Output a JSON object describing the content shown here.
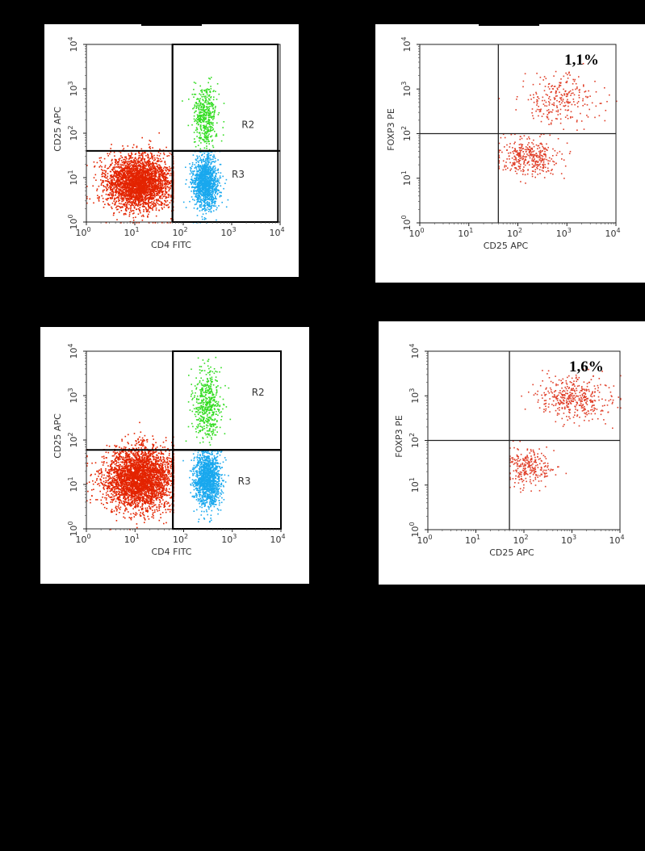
{
  "figure": {
    "background": "#000000",
    "colors": {
      "high": "#e32400",
      "cd4pos_cd25hi": "#33dd22",
      "cd4pos_cd25lo": "#19a8ee",
      "foxp3": "#e0402a"
    }
  },
  "chart_data": [
    {
      "id": "p1",
      "type": "scatter",
      "scale": "log",
      "xlim": [
        1,
        10000
      ],
      "ylim": [
        1,
        10000
      ],
      "xlabel": "CD4 FITC",
      "ylabel": "CD25 APC",
      "gates": [
        {
          "name": "R2",
          "x": [
            60,
            9000
          ],
          "y": [
            40,
            10000
          ]
        },
        {
          "name": "R3",
          "x": [
            60,
            9000
          ],
          "y": [
            1,
            40
          ]
        }
      ],
      "gate_labels": [
        {
          "text": "R2",
          "x": 1600,
          "y": 130
        },
        {
          "text": "R3",
          "x": 1000,
          "y": 10
        }
      ],
      "populations": [
        {
          "name": "CD4 negative",
          "color": "#e32400",
          "count": 3200,
          "cx": 12,
          "cy": 8,
          "sx": 0.35,
          "sy": 0.3,
          "xmin": 1,
          "xmax": 60,
          "ymin": 1,
          "ymax": 700
        },
        {
          "name": "CD4+ CD25 high",
          "color": "#33dd22",
          "count": 450,
          "cx": 280,
          "cy": 250,
          "sx": 0.13,
          "sy": 0.35,
          "xmin": 60,
          "xmax": 900,
          "ymin": 40,
          "ymax": 7000
        },
        {
          "name": "CD4+ CD25 low",
          "color": "#19a8ee",
          "count": 1300,
          "cx": 280,
          "cy": 8,
          "sx": 0.13,
          "sy": 0.3,
          "xmin": 60,
          "xmax": 900,
          "ymin": 1,
          "ymax": 40
        }
      ]
    },
    {
      "id": "p2",
      "type": "scatter",
      "scale": "log",
      "xlim": [
        1,
        10000
      ],
      "ylim": [
        1,
        10000
      ],
      "xlabel": "CD25 APC",
      "ylabel": "FOXP3 PE",
      "quadrant": {
        "x": 40,
        "y": 100
      },
      "annotation": {
        "text": "1,1%",
        "x": 2000,
        "y": 3500
      },
      "populations": [
        {
          "name": "FOXP3 low",
          "color": "#e0402a",
          "count": 380,
          "cx": 170,
          "cy": 30,
          "sx": 0.3,
          "sy": 0.2,
          "xmin": 40,
          "xmax": 10000,
          "ymin": 1,
          "ymax": 100
        },
        {
          "name": "FOXP3 high",
          "color": "#e0402a",
          "count": 260,
          "cx": 700,
          "cy": 600,
          "sx": 0.45,
          "sy": 0.3,
          "xmin": 40,
          "xmax": 10000,
          "ymin": 100,
          "ymax": 10000
        }
      ]
    },
    {
      "id": "p3",
      "type": "scatter",
      "scale": "log",
      "xlim": [
        1,
        10000
      ],
      "ylim": [
        1,
        10000
      ],
      "xlabel": "CD4 FITC",
      "ylabel": "CD25 APC",
      "gates": [
        {
          "name": "R2",
          "x": [
            60,
            10000
          ],
          "y": [
            60,
            10000
          ]
        },
        {
          "name": "R3",
          "x": [
            60,
            10000
          ],
          "y": [
            1,
            60
          ]
        }
      ],
      "gate_labels": [
        {
          "text": "R2",
          "x": 2500,
          "y": 1000
        },
        {
          "text": "R3",
          "x": 1300,
          "y": 10
        }
      ],
      "populations": [
        {
          "name": "CD4 negative",
          "color": "#e32400",
          "count": 3400,
          "cx": 12,
          "cy": 14,
          "sx": 0.35,
          "sy": 0.35,
          "xmin": 1,
          "xmax": 60,
          "ymin": 1,
          "ymax": 2000
        },
        {
          "name": "CD4+ CD25 high",
          "color": "#33dd22",
          "count": 500,
          "cx": 300,
          "cy": 600,
          "sx": 0.14,
          "sy": 0.4,
          "xmin": 60,
          "xmax": 900,
          "ymin": 60,
          "ymax": 10000
        },
        {
          "name": "CD4+ CD25 low",
          "color": "#19a8ee",
          "count": 1400,
          "cx": 300,
          "cy": 14,
          "sx": 0.14,
          "sy": 0.32,
          "xmin": 60,
          "xmax": 900,
          "ymin": 1,
          "ymax": 60
        }
      ]
    },
    {
      "id": "p4",
      "type": "scatter",
      "scale": "log",
      "xlim": [
        1,
        10000
      ],
      "ylim": [
        1,
        10000
      ],
      "xlabel": "CD25 APC",
      "ylabel": "FOXP3 PE",
      "quadrant": {
        "x": 50,
        "y": 100
      },
      "annotation": {
        "text": "1,6%",
        "x": 2000,
        "y": 3500
      },
      "populations": [
        {
          "name": "FOXP3 low",
          "color": "#e0402a",
          "count": 260,
          "cx": 120,
          "cy": 25,
          "sx": 0.25,
          "sy": 0.22,
          "xmin": 50,
          "xmax": 10000,
          "ymin": 1,
          "ymax": 100
        },
        {
          "name": "FOXP3 high",
          "color": "#e0402a",
          "count": 420,
          "cx": 1100,
          "cy": 900,
          "sx": 0.4,
          "sy": 0.25,
          "xmin": 50,
          "xmax": 10000,
          "ymin": 100,
          "ymax": 10000
        }
      ]
    }
  ]
}
